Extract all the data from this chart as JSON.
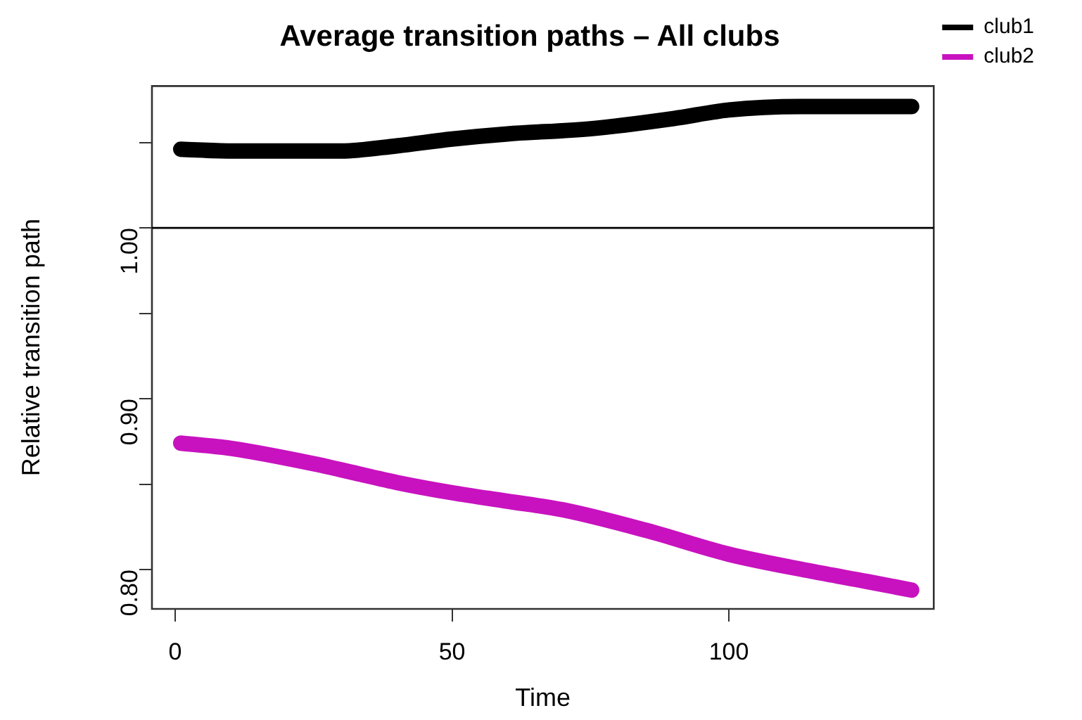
{
  "chart_data": {
    "type": "line",
    "title": "Average transition paths – All clubs",
    "xlabel": "Time",
    "ylabel": "Relative transition path",
    "xlim": [
      -4.2,
      137
    ],
    "xticks": [
      0,
      50,
      100
    ],
    "ylim": [
      0.777,
      1.083
    ],
    "yticks": [
      {
        "value": 0.8,
        "label": "0.80"
      },
      {
        "value": 0.85,
        "label": null
      },
      {
        "value": 0.9,
        "label": "0.90"
      },
      {
        "value": 0.95,
        "label": null
      },
      {
        "value": 1,
        "label": "1.00"
      },
      {
        "value": 1.05,
        "label": null
      }
    ],
    "legend": "right",
    "grid": false,
    "line_style": "solid",
    "ref_lines": [
      {
        "axis": "y",
        "value": 1,
        "color": "#000000"
      }
    ],
    "series": [
      {
        "name": "club1",
        "color": "#000000",
        "x": [
          1,
          10,
          20,
          30,
          40,
          50,
          60,
          75,
          90,
          100,
          113,
          125,
          133
        ],
        "values": [
          1.046,
          1.045,
          1.045,
          1.045,
          1.048,
          1.052,
          1.055,
          1.058,
          1.064,
          1.069,
          1.071,
          1.071,
          1.071
        ]
      },
      {
        "name": "club2",
        "color": "#c812bf",
        "x": [
          1,
          10,
          25,
          40,
          50,
          60,
          70,
          85,
          100,
          115,
          125,
          133
        ],
        "values": [
          0.874,
          0.871,
          0.862,
          0.851,
          0.845,
          0.84,
          0.835,
          0.823,
          0.809,
          0.799,
          0.793,
          0.788
        ]
      }
    ]
  }
}
